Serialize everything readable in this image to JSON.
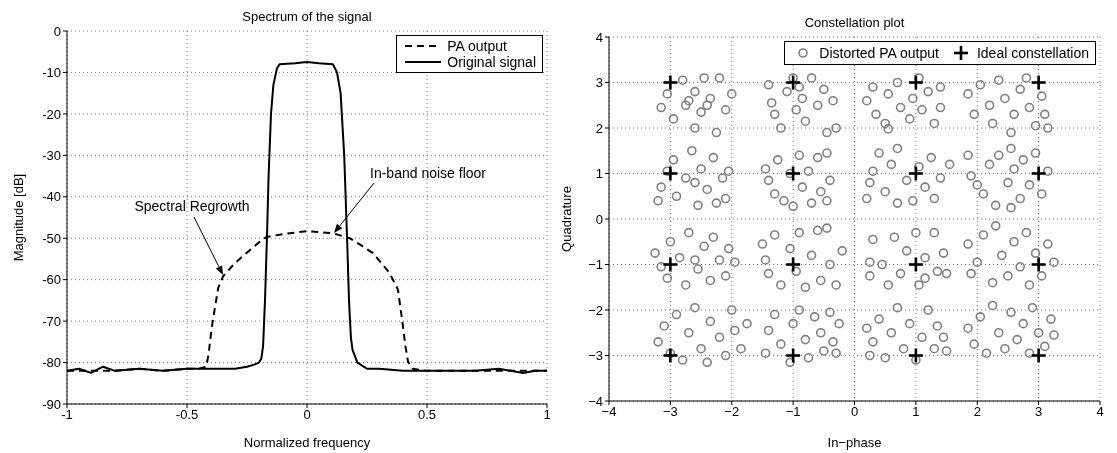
{
  "chart_data": [
    {
      "type": "line",
      "title": "Spectrum of the signal",
      "xlabel": "Normalized frequency",
      "ylabel": "Magnitude [dB]",
      "xlim": [
        -1,
        1
      ],
      "xticks": [
        -1,
        -0.5,
        0,
        0.5,
        1
      ],
      "ylim": [
        -90,
        0
      ],
      "yticks": [
        0,
        -10,
        -20,
        -30,
        -40,
        -50,
        -60,
        -70,
        -80,
        -90
      ],
      "grid": true,
      "legend": "top right",
      "series": [
        {
          "name": "PA output",
          "color": "#000000",
          "line_style": "dashed",
          "x": [
            -1,
            -0.9,
            -0.8,
            -0.7,
            -0.6,
            -0.5,
            -0.45,
            -0.42,
            -0.41,
            -0.4,
            -0.392,
            -0.37,
            -0.35,
            -0.3,
            -0.253,
            -0.2,
            -0.169,
            -0.1,
            0,
            0.108,
            0.178,
            0.22,
            0.275,
            0.31,
            0.344,
            0.379,
            0.4,
            0.41,
            0.421,
            0.44,
            0.5,
            0.6,
            0.7,
            0.8,
            0.9,
            1
          ],
          "values": [
            -82,
            -82,
            -82,
            -81.5,
            -82,
            -81.5,
            -81.5,
            -81,
            -78,
            -73,
            -69.7,
            -62,
            -59.2,
            -56,
            -53.6,
            -51,
            -49.7,
            -49,
            -48.3,
            -48.8,
            -50,
            -51.5,
            -53.6,
            -56,
            -58.4,
            -62.4,
            -71.3,
            -76,
            -79.8,
            -81.5,
            -82,
            -82,
            -82,
            -82,
            -82,
            -82
          ]
        },
        {
          "name": "Original signal",
          "color": "#000000",
          "line_style": "solid",
          "x": [
            -1,
            -0.95,
            -0.9,
            -0.85,
            -0.8,
            -0.7,
            -0.6,
            -0.5,
            -0.4,
            -0.3,
            -0.25,
            -0.22,
            -0.2,
            -0.19,
            -0.183,
            -0.175,
            -0.167,
            -0.16,
            -0.15,
            -0.14,
            -0.125,
            -0.114,
            -0.05,
            0,
            0.05,
            0.108,
            0.125,
            0.14,
            0.155,
            0.167,
            0.175,
            0.183,
            0.19,
            0.21,
            0.25,
            0.3,
            0.4,
            0.5,
            0.6,
            0.7,
            0.8,
            0.85,
            0.9,
            0.95,
            1
          ],
          "values": [
            -82,
            -81.5,
            -82.5,
            -81,
            -82,
            -81.5,
            -82,
            -81.5,
            -81.5,
            -81.5,
            -81,
            -80.5,
            -80,
            -79,
            -76,
            -65,
            -50,
            -35,
            -20,
            -13,
            -9,
            -8,
            -7.8,
            -7.5,
            -7.8,
            -8,
            -10,
            -15,
            -30,
            -50,
            -65,
            -74,
            -77,
            -80,
            -81.5,
            -81.5,
            -82,
            -82,
            -82,
            -82,
            -81.5,
            -82,
            -82.5,
            -82,
            -82
          ]
        }
      ],
      "annotations": [
        "Spectral Regrowth",
        "In-band noise floor"
      ]
    },
    {
      "type": "scatter",
      "title": "Constellation plot",
      "xlabel": "In−phase",
      "ylabel": "Quadrature",
      "xlim": [
        -4,
        4
      ],
      "ylim": [
        -4,
        4
      ],
      "xticks": [
        {
          "value": -4,
          "label": "−4"
        },
        {
          "value": -3,
          "label": "−3"
        },
        {
          "value": -2,
          "label": "−2"
        },
        {
          "value": -1,
          "label": "−1"
        },
        0,
        1,
        2,
        3,
        4
      ],
      "yticks": [
        {
          "value": -4,
          "label": "−4"
        },
        {
          "value": -3,
          "label": "−3"
        },
        {
          "value": -2,
          "label": "−2"
        },
        {
          "value": -1,
          "label": "−1"
        },
        0,
        1,
        2,
        3,
        4
      ],
      "grid": true,
      "legend": "top right",
      "series": [
        {
          "name": "Distorted PA output",
          "color": "#808080",
          "marker": "circle",
          "x": [
            -3.15,
            -3.05,
            -2.95,
            -2.8,
            -2.75,
            -2.6,
            -2.6,
            -2.5,
            -2.45,
            -2.35,
            -2.25,
            -2.2,
            -2.1,
            -2.0,
            -2.7,
            -2.4,
            -1.4,
            -1.35,
            -1.3,
            -1.2,
            -1.1,
            -1.0,
            -0.95,
            -0.85,
            -0.8,
            -0.7,
            -0.6,
            -0.5,
            -0.45,
            -0.35,
            -0.3,
            -0.9,
            0.2,
            0.3,
            0.35,
            0.5,
            0.55,
            0.7,
            0.75,
            0.9,
            0.95,
            1.05,
            1.1,
            1.2,
            1.3,
            1.4,
            1.4,
            0.55,
            1.85,
            1.95,
            2.05,
            2.2,
            2.25,
            2.35,
            2.45,
            2.55,
            2.6,
            2.7,
            2.8,
            2.85,
            2.95,
            3.05,
            3.1,
            3.15,
            -3.2,
            -3.15,
            -3.05,
            -2.95,
            -2.9,
            -2.75,
            -2.65,
            -2.55,
            -2.5,
            -2.4,
            -2.3,
            -2.25,
            -2.15,
            -2.05,
            -2.1,
            -2.6,
            -1.45,
            -1.4,
            -1.3,
            -1.25,
            -1.15,
            -1.05,
            -1.0,
            -0.9,
            -0.85,
            -0.75,
            -0.7,
            -0.6,
            -0.55,
            -0.45,
            -0.4,
            -0.45,
            0.2,
            0.25,
            0.3,
            0.4,
            0.5,
            0.6,
            0.7,
            0.7,
            0.85,
            0.95,
            1.05,
            1.15,
            1.25,
            1.3,
            1.4,
            1.55,
            1.85,
            1.9,
            2.0,
            2.1,
            2.2,
            2.3,
            2.35,
            2.5,
            2.55,
            2.6,
            2.7,
            2.75,
            2.85,
            2.95,
            3.05,
            3.15,
            2.55,
            -3.25,
            -3.15,
            -3.05,
            -3.0,
            -2.85,
            -2.75,
            -2.7,
            -2.55,
            -2.45,
            -2.35,
            -2.3,
            -2.2,
            -2.1,
            -2.05,
            -1.95,
            -2.6,
            -1.5,
            -1.45,
            -1.4,
            -1.3,
            -1.2,
            -1.05,
            -0.95,
            -0.9,
            -0.8,
            -0.7,
            -0.6,
            -0.55,
            -0.45,
            -0.4,
            -0.3,
            -0.2,
            0.25,
            0.25,
            0.3,
            0.45,
            0.55,
            0.65,
            0.75,
            0.85,
            1.0,
            1.05,
            1.15,
            1.3,
            1.35,
            1.45,
            1.5,
            1.15,
            1.85,
            1.9,
            2.0,
            2.1,
            2.25,
            2.3,
            2.4,
            2.5,
            2.6,
            2.7,
            2.8,
            2.85,
            2.95,
            3.05,
            3.15,
            3.25,
            -3.2,
            -3.1,
            -3.0,
            -2.9,
            -2.8,
            -2.7,
            -2.6,
            -2.5,
            -2.4,
            -2.35,
            -2.2,
            -2.1,
            -2.0,
            -1.95,
            -1.85,
            -1.75,
            -1.45,
            -1.4,
            -1.3,
            -1.2,
            -1.05,
            -1.0,
            -0.9,
            -0.8,
            -0.75,
            -0.65,
            -0.55,
            -0.5,
            -0.4,
            -0.35,
            -0.25,
            -0.3,
            0.2,
            0.25,
            0.3,
            0.4,
            0.5,
            0.6,
            0.7,
            0.8,
            0.9,
            1.0,
            1.1,
            1.2,
            1.3,
            1.35,
            1.45,
            1.5,
            1.85,
            1.95,
            2.05,
            2.15,
            2.25,
            2.35,
            2.45,
            2.55,
            2.65,
            2.75,
            2.85,
            2.9,
            3.0,
            3.1,
            3.2,
            3.25
          ],
          "values": [
            2.45,
            2.75,
            2.2,
            3.05,
            2.5,
            2.0,
            2.8,
            2.35,
            3.1,
            2.65,
            1.9,
            3.1,
            2.4,
            2.75,
            2.6,
            2.5,
            2.95,
            2.55,
            2.3,
            2.0,
            2.8,
            3.1,
            2.4,
            2.65,
            2.15,
            3.1,
            2.5,
            2.85,
            1.9,
            2.6,
            2.0,
            2.9,
            2.6,
            2.9,
            2.3,
            2.1,
            2.75,
            3.0,
            2.45,
            2.2,
            2.65,
            3.1,
            2.4,
            2.8,
            2.1,
            2.45,
            2.9,
            1.98,
            2.75,
            2.3,
            2.95,
            2.5,
            2.1,
            3.05,
            2.65,
            1.9,
            2.3,
            2.85,
            3.1,
            2.45,
            2.05,
            2.7,
            2.3,
            2.0,
            0.4,
            0.7,
            1.05,
            1.3,
            0.5,
            0.9,
            1.5,
            0.3,
            1.1,
            0.65,
            1.35,
            0.35,
            0.9,
            1.05,
            0.45,
            0.8,
            1.1,
            0.85,
            0.55,
            1.3,
            0.4,
            1.0,
            0.28,
            1.4,
            0.7,
            1.05,
            0.35,
            1.35,
            0.6,
            1.45,
            0.85,
            0.4,
            0.45,
            0.8,
            1.05,
            1.45,
            0.6,
            1.2,
            0.35,
            1.55,
            0.85,
            0.4,
            1.15,
            0.7,
            1.35,
            0.45,
            0.9,
            1.2,
            1.4,
            0.95,
            0.75,
            0.55,
            1.2,
            0.3,
            1.4,
            0.8,
            0.25,
            1.1,
            0.45,
            1.3,
            0.75,
            1.45,
            0.55,
            1.05,
            1.55,
            -0.75,
            -1.05,
            -1.3,
            -0.5,
            -0.85,
            -1.45,
            -0.3,
            -1.1,
            -0.6,
            -1.35,
            -0.4,
            -0.9,
            -1.25,
            -0.65,
            -0.95,
            -0.9,
            -0.55,
            -0.9,
            -1.2,
            -0.35,
            -1.45,
            -0.65,
            -1.15,
            -0.3,
            -1.5,
            -0.8,
            -0.25,
            -1.35,
            -0.2,
            -1.0,
            -1.45,
            -0.7,
            -0.95,
            -1.25,
            -0.45,
            -1.0,
            -1.45,
            -0.4,
            -1.2,
            -0.7,
            -0.3,
            -1.45,
            -0.85,
            -0.3,
            -1.15,
            -0.75,
            -1.2,
            -1.3,
            -0.55,
            -1.2,
            -0.95,
            -0.35,
            -1.4,
            -0.15,
            -0.8,
            -1.25,
            -0.5,
            -1.05,
            -0.3,
            -1.45,
            -0.75,
            -1.25,
            -0.55,
            -0.95,
            -2.7,
            -2.35,
            -2.95,
            -2.1,
            -3.1,
            -2.5,
            -1.95,
            -2.85,
            -3.15,
            -2.25,
            -2.6,
            -3.0,
            -2.0,
            -2.45,
            -2.85,
            -2.3,
            -2.95,
            -2.45,
            -2.1,
            -2.75,
            -3.15,
            -2.3,
            -2.0,
            -2.65,
            -3.05,
            -2.15,
            -2.5,
            -2.9,
            -2.05,
            -2.7,
            -2.3,
            -2.95,
            -2.4,
            -3.0,
            -2.7,
            -2.2,
            -3.05,
            -2.5,
            -1.95,
            -2.85,
            -2.3,
            -3.1,
            -2.6,
            -2.0,
            -2.85,
            -2.35,
            -2.6,
            -2.9,
            -2.4,
            -2.75,
            -2.15,
            -2.95,
            -1.9,
            -2.5,
            -2.85,
            -2.05,
            -2.65,
            -2.3,
            -2.95,
            -1.95,
            -2.5,
            -2.8,
            -2.2,
            -2.55
          ]
        },
        {
          "name": "Ideal constellation",
          "color": "#000000",
          "marker": "cross",
          "x": [
            -3,
            -1,
            1,
            3,
            -3,
            -1,
            1,
            3,
            -3,
            -1,
            1,
            3,
            -3,
            -1,
            1,
            3
          ],
          "values": [
            3,
            3,
            3,
            3,
            1,
            1,
            1,
            1,
            -1,
            -1,
            -1,
            -1,
            -3,
            -3,
            -3,
            -3
          ]
        }
      ]
    }
  ]
}
